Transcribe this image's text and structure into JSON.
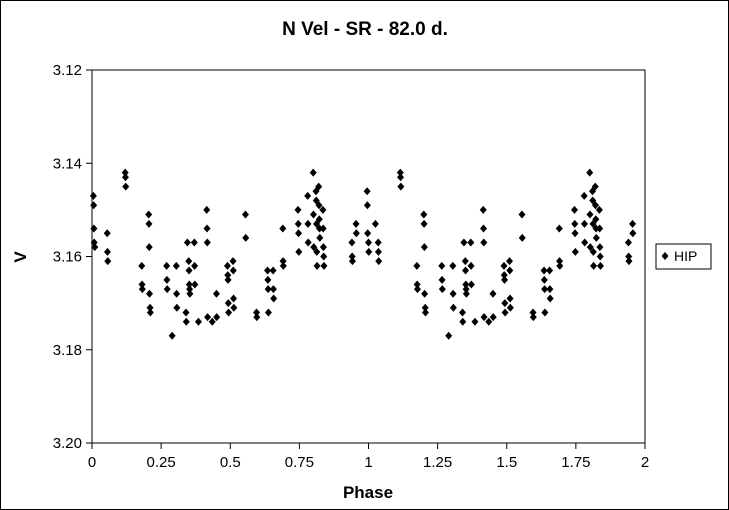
{
  "chart_data": {
    "type": "scatter",
    "title": "N Vel - SR - 82.0 d.",
    "xlabel": "Phase",
    "ylabel": "V",
    "xlim": [
      0,
      2
    ],
    "ylim": [
      3.2,
      3.12
    ],
    "y_inverted": true,
    "grid": false,
    "legend_position": "right",
    "x_ticks": [
      "0",
      "0.25",
      "0.5",
      "0.75",
      "1",
      "1.25",
      "1.5",
      "1.75",
      "2"
    ],
    "y_ticks": [
      "3.12",
      "3.14",
      "3.16",
      "3.18",
      "3.20"
    ],
    "series": [
      {
        "name": "HIP",
        "color": "#000000",
        "marker": "diamond",
        "points": [
          [
            0.005,
            3.147
          ],
          [
            0.006,
            3.149
          ],
          [
            0.007,
            3.154
          ],
          [
            0.008,
            3.157
          ],
          [
            0.01,
            3.158
          ],
          [
            0.055,
            3.155
          ],
          [
            0.056,
            3.159
          ],
          [
            0.057,
            3.161
          ],
          [
            0.12,
            3.142
          ],
          [
            0.121,
            3.143
          ],
          [
            0.122,
            3.145
          ],
          [
            0.18,
            3.162
          ],
          [
            0.181,
            3.166
          ],
          [
            0.182,
            3.167
          ],
          [
            0.205,
            3.151
          ],
          [
            0.206,
            3.153
          ],
          [
            0.207,
            3.158
          ],
          [
            0.208,
            3.168
          ],
          [
            0.21,
            3.171
          ],
          [
            0.211,
            3.172
          ],
          [
            0.27,
            3.162
          ],
          [
            0.271,
            3.165
          ],
          [
            0.272,
            3.167
          ],
          [
            0.29,
            3.177
          ],
          [
            0.305,
            3.162
          ],
          [
            0.306,
            3.168
          ],
          [
            0.307,
            3.171
          ],
          [
            0.34,
            3.172
          ],
          [
            0.341,
            3.174
          ],
          [
            0.345,
            3.157
          ],
          [
            0.35,
            3.161
          ],
          [
            0.351,
            3.163
          ],
          [
            0.352,
            3.166
          ],
          [
            0.353,
            3.167
          ],
          [
            0.354,
            3.168
          ],
          [
            0.37,
            3.157
          ],
          [
            0.371,
            3.162
          ],
          [
            0.372,
            3.166
          ],
          [
            0.385,
            3.174
          ],
          [
            0.415,
            3.15
          ],
          [
            0.416,
            3.154
          ],
          [
            0.417,
            3.157
          ],
          [
            0.418,
            3.173
          ],
          [
            0.435,
            3.174
          ],
          [
            0.45,
            3.168
          ],
          [
            0.451,
            3.173
          ],
          [
            0.49,
            3.162
          ],
          [
            0.491,
            3.164
          ],
          [
            0.492,
            3.165
          ],
          [
            0.493,
            3.17
          ],
          [
            0.494,
            3.172
          ],
          [
            0.51,
            3.161
          ],
          [
            0.511,
            3.163
          ],
          [
            0.512,
            3.169
          ],
          [
            0.513,
            3.171
          ],
          [
            0.555,
            3.151
          ],
          [
            0.556,
            3.156
          ],
          [
            0.595,
            3.172
          ],
          [
            0.596,
            3.173
          ],
          [
            0.635,
            3.163
          ],
          [
            0.636,
            3.165
          ],
          [
            0.637,
            3.167
          ],
          [
            0.638,
            3.172
          ],
          [
            0.655,
            3.163
          ],
          [
            0.656,
            3.167
          ],
          [
            0.657,
            3.169
          ],
          [
            0.69,
            3.154
          ],
          [
            0.691,
            3.161
          ],
          [
            0.692,
            3.162
          ],
          [
            0.745,
            3.15
          ],
          [
            0.746,
            3.153
          ],
          [
            0.747,
            3.155
          ],
          [
            0.748,
            3.159
          ],
          [
            0.78,
            3.147
          ],
          [
            0.781,
            3.153
          ],
          [
            0.782,
            3.157
          ],
          [
            0.8,
            3.142
          ],
          [
            0.801,
            3.151
          ],
          [
            0.802,
            3.158
          ],
          [
            0.81,
            3.146
          ],
          [
            0.811,
            3.148
          ],
          [
            0.812,
            3.153
          ],
          [
            0.813,
            3.159
          ],
          [
            0.814,
            3.162
          ],
          [
            0.82,
            3.145
          ],
          [
            0.821,
            3.149
          ],
          [
            0.822,
            3.152
          ],
          [
            0.823,
            3.154
          ],
          [
            0.824,
            3.156
          ],
          [
            0.835,
            3.15
          ],
          [
            0.836,
            3.154
          ],
          [
            0.837,
            3.158
          ],
          [
            0.838,
            3.16
          ],
          [
            0.839,
            3.162
          ],
          [
            0.94,
            3.157
          ],
          [
            0.941,
            3.16
          ],
          [
            0.942,
            3.161
          ],
          [
            0.955,
            3.153
          ],
          [
            0.956,
            3.155
          ],
          [
            0.995,
            3.146
          ],
          [
            0.996,
            3.149
          ],
          [
            0.997,
            3.155
          ],
          [
            1.0,
            3.157
          ],
          [
            1.001,
            3.159
          ],
          [
            1.035,
            3.157
          ],
          [
            1.036,
            3.159
          ],
          [
            1.037,
            3.161
          ],
          [
            1.025,
            3.153
          ],
          [
            1.115,
            3.142
          ],
          [
            1.116,
            3.143
          ],
          [
            1.117,
            3.145
          ],
          [
            1.175,
            3.162
          ],
          [
            1.176,
            3.166
          ],
          [
            1.177,
            3.167
          ],
          [
            1.2,
            3.151
          ],
          [
            1.201,
            3.153
          ],
          [
            1.202,
            3.158
          ],
          [
            1.203,
            3.168
          ],
          [
            1.205,
            3.171
          ],
          [
            1.206,
            3.172
          ],
          [
            1.265,
            3.162
          ],
          [
            1.266,
            3.165
          ],
          [
            1.267,
            3.167
          ],
          [
            1.29,
            3.177
          ],
          [
            1.305,
            3.162
          ],
          [
            1.306,
            3.168
          ],
          [
            1.307,
            3.171
          ],
          [
            1.34,
            3.172
          ],
          [
            1.341,
            3.174
          ],
          [
            1.345,
            3.157
          ],
          [
            1.35,
            3.161
          ],
          [
            1.351,
            3.163
          ],
          [
            1.352,
            3.166
          ],
          [
            1.353,
            3.167
          ],
          [
            1.354,
            3.168
          ],
          [
            1.37,
            3.157
          ],
          [
            1.371,
            3.162
          ],
          [
            1.372,
            3.166
          ],
          [
            1.385,
            3.174
          ],
          [
            1.415,
            3.15
          ],
          [
            1.416,
            3.154
          ],
          [
            1.417,
            3.157
          ],
          [
            1.418,
            3.173
          ],
          [
            1.435,
            3.174
          ],
          [
            1.45,
            3.168
          ],
          [
            1.451,
            3.173
          ],
          [
            1.49,
            3.162
          ],
          [
            1.491,
            3.164
          ],
          [
            1.492,
            3.165
          ],
          [
            1.493,
            3.17
          ],
          [
            1.494,
            3.172
          ],
          [
            1.51,
            3.161
          ],
          [
            1.511,
            3.163
          ],
          [
            1.512,
            3.169
          ],
          [
            1.513,
            3.171
          ],
          [
            1.555,
            3.151
          ],
          [
            1.556,
            3.156
          ],
          [
            1.595,
            3.172
          ],
          [
            1.596,
            3.173
          ],
          [
            1.635,
            3.163
          ],
          [
            1.636,
            3.165
          ],
          [
            1.637,
            3.167
          ],
          [
            1.638,
            3.172
          ],
          [
            1.655,
            3.163
          ],
          [
            1.656,
            3.167
          ],
          [
            1.657,
            3.169
          ],
          [
            1.69,
            3.154
          ],
          [
            1.691,
            3.161
          ],
          [
            1.692,
            3.162
          ],
          [
            1.745,
            3.15
          ],
          [
            1.746,
            3.153
          ],
          [
            1.747,
            3.155
          ],
          [
            1.748,
            3.159
          ],
          [
            1.78,
            3.147
          ],
          [
            1.781,
            3.153
          ],
          [
            1.782,
            3.157
          ],
          [
            1.8,
            3.142
          ],
          [
            1.801,
            3.151
          ],
          [
            1.802,
            3.158
          ],
          [
            1.81,
            3.146
          ],
          [
            1.811,
            3.148
          ],
          [
            1.812,
            3.153
          ],
          [
            1.813,
            3.159
          ],
          [
            1.814,
            3.162
          ],
          [
            1.82,
            3.145
          ],
          [
            1.821,
            3.149
          ],
          [
            1.822,
            3.152
          ],
          [
            1.823,
            3.154
          ],
          [
            1.824,
            3.156
          ],
          [
            1.835,
            3.15
          ],
          [
            1.836,
            3.154
          ],
          [
            1.837,
            3.158
          ],
          [
            1.838,
            3.16
          ],
          [
            1.839,
            3.162
          ],
          [
            1.94,
            3.157
          ],
          [
            1.941,
            3.16
          ],
          [
            1.942,
            3.161
          ],
          [
            1.955,
            3.153
          ],
          [
            1.956,
            3.155
          ]
        ]
      }
    ]
  }
}
